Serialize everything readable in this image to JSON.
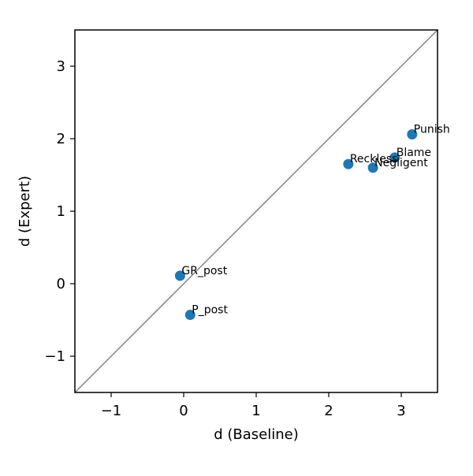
{
  "chart_data": {
    "type": "scatter",
    "title": "",
    "xlabel": "d (Baseline)",
    "ylabel": "d (Expert)",
    "xlim": [
      -1.5,
      3.5
    ],
    "ylim": [
      -1.5,
      3.5
    ],
    "xticks": [
      -1,
      0,
      1,
      2,
      3
    ],
    "yticks": [
      -1,
      0,
      1,
      2,
      3
    ],
    "xtick_labels": [
      "−1",
      "0",
      "1",
      "2",
      "3"
    ],
    "ytick_labels": [
      "−1",
      "0",
      "1",
      "2",
      "3"
    ],
    "grid": false,
    "reference_line": "y = x",
    "reference_line_color": "#808080",
    "marker_color": "#1f77b4",
    "points": [
      {
        "label": "Punish",
        "x": 3.15,
        "y": 2.06
      },
      {
        "label": "Blame",
        "x": 2.91,
        "y": 1.74
      },
      {
        "label": "Negligent",
        "x": 2.61,
        "y": 1.6
      },
      {
        "label": "Reckless",
        "x": 2.27,
        "y": 1.65
      },
      {
        "label": "GR_post",
        "x": -0.05,
        "y": 0.11
      },
      {
        "label": "P_post",
        "x": 0.09,
        "y": -0.43
      }
    ]
  }
}
